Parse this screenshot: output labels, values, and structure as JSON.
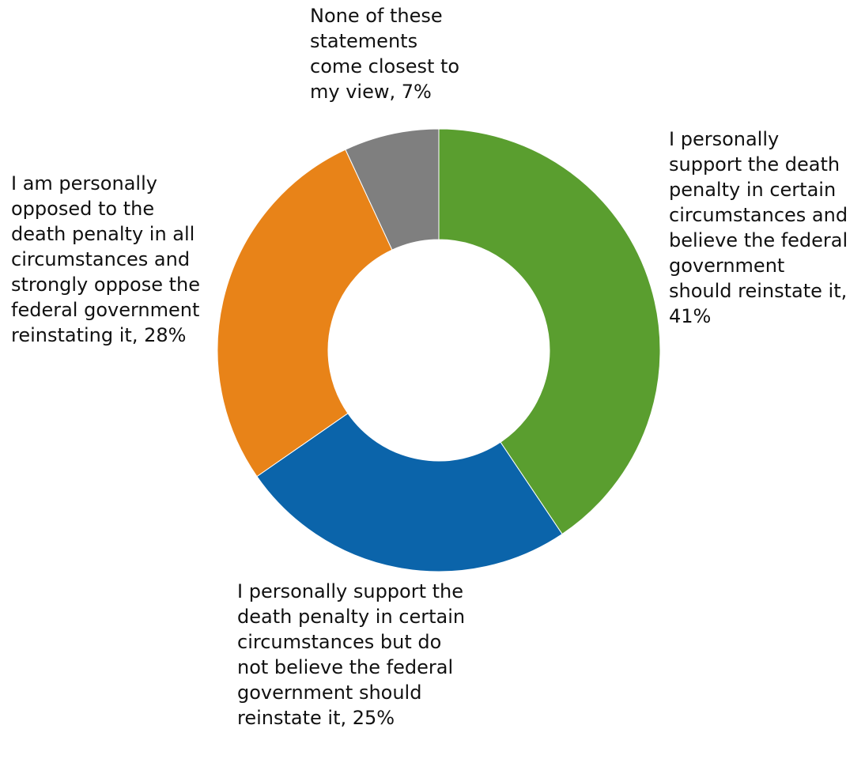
{
  "chart_data": {
    "type": "pie",
    "variant": "donut",
    "title": "",
    "slices": [
      {
        "key": "support-reinstate",
        "label_lines": [
          "I personally",
          "support the death",
          "penalty in certain",
          "circumstances and",
          "believe the federal",
          "government",
          "should reinstate it,",
          "41%"
        ],
        "label": "I personally support the death penalty in certain circumstances and believe the federal government should reinstate it",
        "value": 41,
        "color": "#5a9e2f"
      },
      {
        "key": "support-not-reinstate",
        "label_lines": [
          "I personally support the",
          "death penalty in certain",
          "circumstances but do",
          "not believe the federal",
          "government should",
          "reinstate it, 25%"
        ],
        "label": "I personally support the death penalty in certain circumstances but do not believe the federal government should reinstate it",
        "value": 25,
        "color": "#0b64aa"
      },
      {
        "key": "opposed",
        "label_lines": [
          "I am personally",
          "opposed to the",
          "death penalty in all",
          "circumstances and",
          "strongly oppose the",
          "federal government",
          "reinstating it, 28%"
        ],
        "label": "I am personally opposed to the death penalty in all circumstances and strongly oppose the federal government reinstating it",
        "value": 28,
        "color": "#e88318"
      },
      {
        "key": "none",
        "label_lines": [
          "None of these",
          "statements",
          "come closest to",
          "my view, 7%"
        ],
        "label": "None of these statements come closest to my view",
        "value": 7,
        "color": "#7f7f7f"
      }
    ],
    "legend": "none",
    "grid": false
  }
}
